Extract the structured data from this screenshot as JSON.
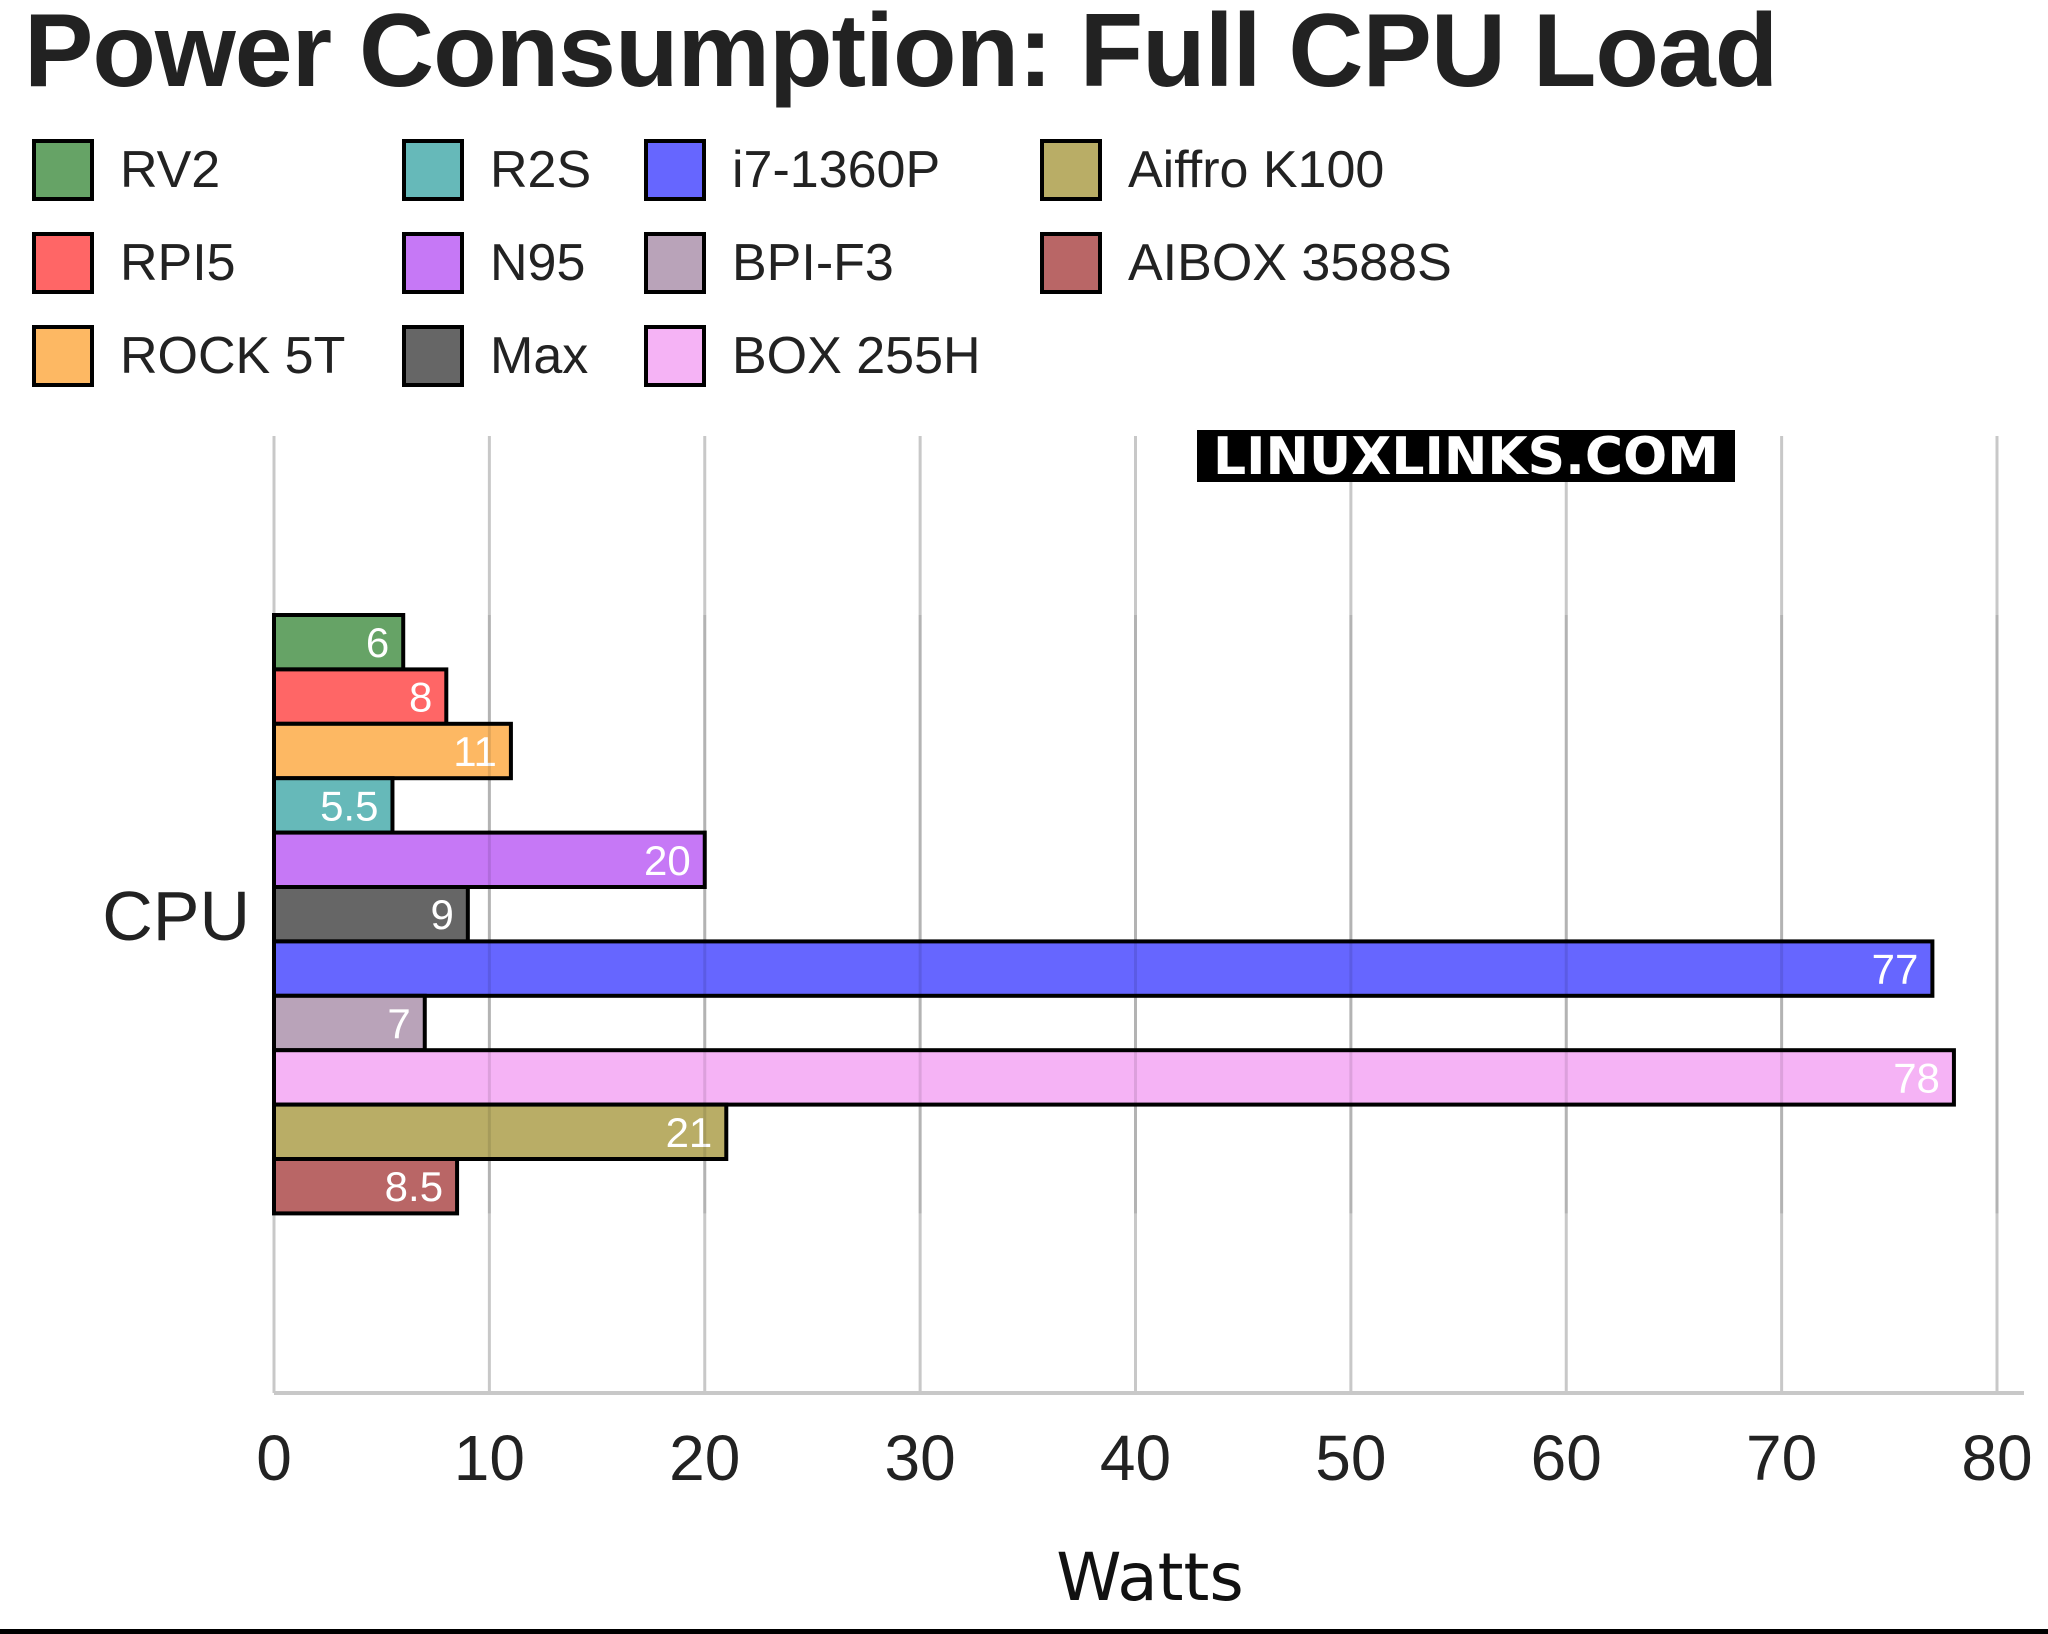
{
  "chart_data": {
    "type": "bar",
    "orientation": "horizontal",
    "title": "Power Consumption: Full CPU Load",
    "xlabel": "Watts",
    "ylabel": "",
    "categories": [
      "CPU"
    ],
    "xlim": [
      0,
      80
    ],
    "xticks": [
      0,
      10,
      20,
      30,
      40,
      50,
      60,
      70,
      80
    ],
    "grid": true,
    "legend_position": "top-left",
    "watermark": "LINUXLINKS.COM",
    "series": [
      {
        "name": "RV2",
        "values": [
          6
        ],
        "label": "6",
        "color": "#66a366"
      },
      {
        "name": "RPI5",
        "values": [
          8
        ],
        "label": "8",
        "color": "#ff6666"
      },
      {
        "name": "ROCK 5T",
        "values": [
          11
        ],
        "label": "11",
        "color": "#fdb863"
      },
      {
        "name": "R2S",
        "values": [
          5.5
        ],
        "label": "5.5",
        "color": "#66b9b9"
      },
      {
        "name": "N95",
        "values": [
          20
        ],
        "label": "20",
        "color": "#c678f6"
      },
      {
        "name": "Max",
        "values": [
          9
        ],
        "label": "9",
        "color": "#666666"
      },
      {
        "name": "i7-1360P",
        "values": [
          77
        ],
        "label": "77",
        "color": "#6666ff"
      },
      {
        "name": "BPI-F3",
        "values": [
          7
        ],
        "label": "7",
        "color": "#b9a3b9"
      },
      {
        "name": "BOX 255H",
        "values": [
          78
        ],
        "label": "78",
        "color": "#f5b3f5"
      },
      {
        "name": "Aiffro K100",
        "values": [
          21
        ],
        "label": "21",
        "color": "#b9ad66"
      },
      {
        "name": "AIBOX 3588S",
        "values": [
          8.5
        ],
        "label": "8.5",
        "color": "#b96666"
      }
    ]
  }
}
